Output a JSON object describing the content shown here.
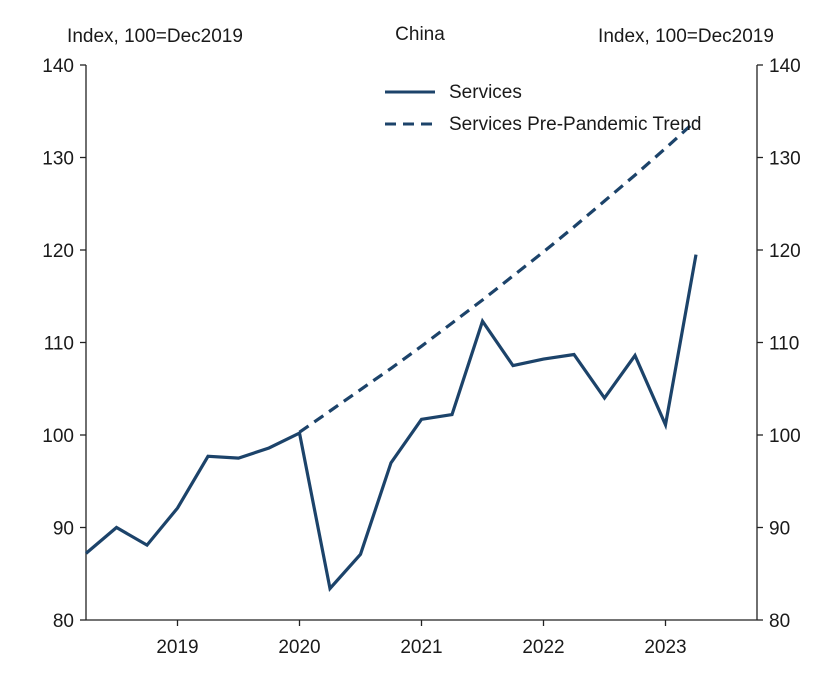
{
  "chart_data": {
    "type": "line",
    "title": "China",
    "ylabel_left": "Index, 100=Dec2019",
    "ylabel_right": "Index, 100=Dec2019",
    "ylim": [
      80,
      140
    ],
    "yticks": [
      80,
      90,
      100,
      110,
      120,
      130,
      140
    ],
    "xlim": [
      2018.25,
      2023.75
    ],
    "xticks": [
      2019,
      2020,
      2021,
      2022,
      2023
    ],
    "xtick_labels": [
      "2019",
      "2020",
      "2021",
      "2022",
      "2023"
    ],
    "legend_position": "top-right",
    "series": [
      {
        "name": "Services",
        "style": "solid",
        "color": "#1c436a",
        "x": [
          2018.25,
          2018.5,
          2018.75,
          2019.0,
          2019.25,
          2019.5,
          2019.75,
          2020.0,
          2020.25,
          2020.5,
          2020.75,
          2021.0,
          2021.25,
          2021.5,
          2021.75,
          2022.0,
          2022.25,
          2022.5,
          2022.75,
          2023.0,
          2023.25
        ],
        "values": [
          87.2,
          90.0,
          88.1,
          92.1,
          97.7,
          97.5,
          98.6,
          100.2,
          83.4,
          87.1,
          97.0,
          101.7,
          102.2,
          112.3,
          107.5,
          108.2,
          108.7,
          104.0,
          108.6,
          101.1,
          119.5
        ]
      },
      {
        "name": "Services Pre-Pandemic Trend",
        "style": "dashed",
        "color": "#1c436a",
        "x": [
          2020.0,
          2020.25,
          2020.5,
          2020.75,
          2021.0,
          2021.25,
          2021.5,
          2021.75,
          2022.0,
          2022.25,
          2022.5,
          2022.75,
          2023.0,
          2023.25
        ],
        "values": [
          100.3,
          102.6,
          104.9,
          107.2,
          109.6,
          112.1,
          114.6,
          117.2,
          119.8,
          122.5,
          125.3,
          128.1,
          131.0,
          134.0
        ]
      }
    ]
  }
}
